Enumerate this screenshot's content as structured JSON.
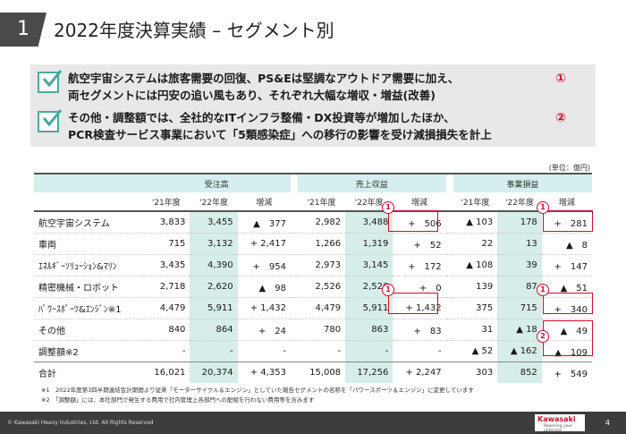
{
  "slide": {
    "number": "1",
    "title": "2022年度決算実績 – セグメント別"
  },
  "bullets": [
    {
      "line1": "航空宇宙システムは旅客需要の回復、PS&Eは堅調なアウトドア需要に加え、",
      "line2": "両セグメントには円安の追い風もあり、それぞれ大幅な増収・増益(改善)",
      "mark": "①"
    },
    {
      "line1": "その他・調整額では、全社的なITインフラ整備・DX投資等が増加したほか、",
      "line2": "PCR検査サービス事業において「5類感染症」への移行の影響を受け減損損失を計上",
      "mark": "②"
    }
  ],
  "unit": "(単位：億円)",
  "table": {
    "groups": [
      "受注高",
      "売上収益",
      "事業損益"
    ],
    "subcols": [
      "'21年度",
      "'22年度",
      "増減"
    ],
    "rows": [
      {
        "label": "航空宇宙システム",
        "v": [
          "3,833",
          "3,455",
          "▲　377",
          "2,982",
          "3,488",
          "+　506",
          "▲ 103",
          "178",
          "+　281"
        ]
      },
      {
        "label": "車両",
        "v": [
          "715",
          "3,132",
          "+ 2,417",
          "1,266",
          "1,319",
          "+　52",
          "22",
          "13",
          "▲　8"
        ]
      },
      {
        "label": "ｴﾈﾙｷﾞｰｿﾘｭｰｼｮﾝ&ﾏﾘﾝ",
        "v": [
          "3,435",
          "4,390",
          "+　954",
          "2,973",
          "3,145",
          "+　172",
          "▲ 108",
          "39",
          "+　147"
        ]
      },
      {
        "label": "精密機械・ロボット",
        "v": [
          "2,718",
          "2,620",
          "▲　98",
          "2,526",
          "2,526",
          "+　0",
          "139",
          "87",
          "▲　51"
        ]
      },
      {
        "label": "ﾊﾟﾜｰｽﾎﾟｰﾂ&ｴﾝｼﾞﾝ※1",
        "v": [
          "4,479",
          "5,911",
          "+ 1,432",
          "4,479",
          "5,911",
          "+ 1,432",
          "375",
          "715",
          "+　340"
        ]
      },
      {
        "label": "その他",
        "v": [
          "840",
          "864",
          "+　24",
          "780",
          "863",
          "+　83",
          "31",
          "▲ 18",
          "▲　49"
        ]
      },
      {
        "label": "調整額※2",
        "v": [
          "-",
          "-",
          "-",
          "-",
          "-",
          "-",
          "▲ 52",
          "▲ 162",
          "▲　109"
        ]
      }
    ],
    "total": {
      "label": "合計",
      "v": [
        "16,021",
        "20,374",
        "+ 4,353",
        "15,008",
        "17,256",
        "+ 2,247",
        "303",
        "852",
        "+　549"
      ]
    }
  },
  "annotations": {
    "one": "1",
    "two": "2"
  },
  "footnotes": [
    "※1　2022年度第3四半期連結会計期間より従来「モーターサイクル＆エンジン」としていた報告セグメントの名称を「パワースポーツ＆エンジン」に変更しています",
    "※2　「調整額」には、本社部門で発生する費用で社内管理上各部門への配賦を行わない費用等を含みます"
  ],
  "footer": {
    "copyright": "© Kawasaki Heavy Industries, Ltd. All Rights Reserved",
    "page": "4",
    "logo": "Kawasaki",
    "logo_sub": "Powering your potential"
  },
  "colors": {
    "accent_red": "#c8102e",
    "teal": "#4aa7a0",
    "header_bg": "#d4efee"
  }
}
